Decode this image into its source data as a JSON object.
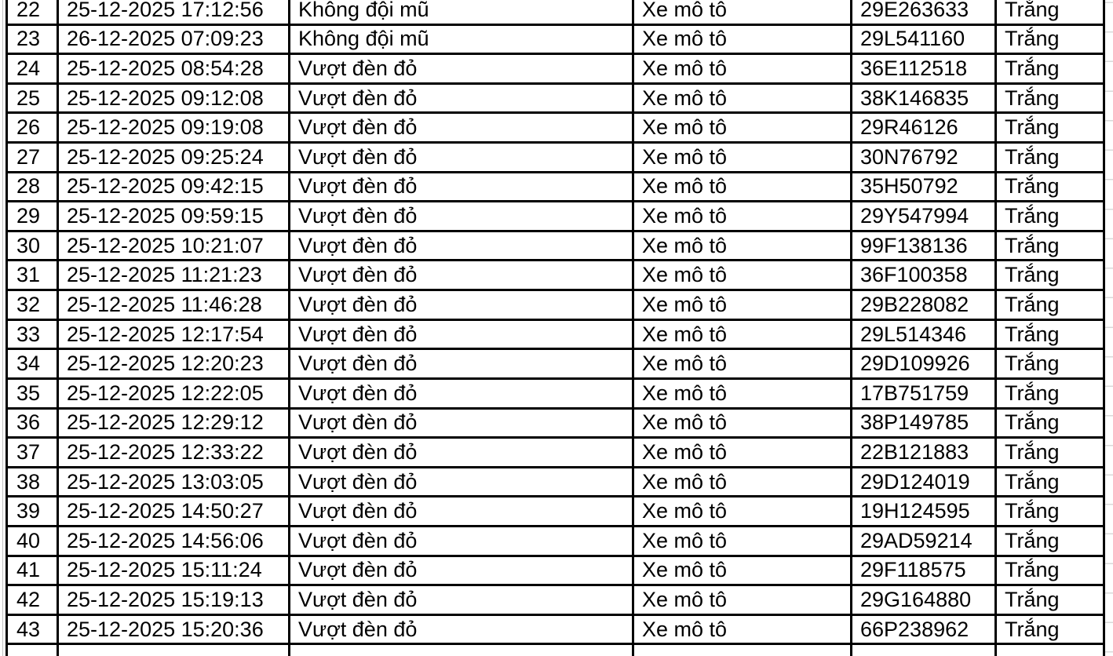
{
  "app": {
    "description": "Spreadsheet region showing a Vietnamese traffic-violation list (rows 22-43), no header row visible"
  },
  "colors": {
    "background": "#ffffff",
    "text": "#000000",
    "table_border": "#000000",
    "sheet_gridline_right": "#d9d9d9",
    "sheet_gridline_left": "#c2c2c2"
  },
  "table": {
    "columns": [
      {
        "key": "no",
        "name": "cell-row-number"
      },
      {
        "key": "datetime",
        "name": "cell-datetime"
      },
      {
        "key": "violation",
        "name": "cell-violation"
      },
      {
        "key": "vehicle",
        "name": "cell-vehicle-type"
      },
      {
        "key": "plate",
        "name": "cell-license-plate"
      },
      {
        "key": "status",
        "name": "cell-status"
      }
    ],
    "rows": [
      {
        "no": "22",
        "datetime": "25-12-2025 17:12:56",
        "violation": "Không đội mũ",
        "vehicle": "Xe mô tô",
        "plate": "29E263633",
        "status": "Trắng"
      },
      {
        "no": "23",
        "datetime": "26-12-2025 07:09:23",
        "violation": "Không đội mũ",
        "vehicle": "Xe mô tô",
        "plate": "29L541160",
        "status": "Trắng"
      },
      {
        "no": "24",
        "datetime": "25-12-2025 08:54:28",
        "violation": "Vượt đèn đỏ",
        "vehicle": "Xe mô tô",
        "plate": "36E112518",
        "status": "Trắng"
      },
      {
        "no": "25",
        "datetime": "25-12-2025 09:12:08",
        "violation": "Vượt đèn đỏ",
        "vehicle": "Xe mô tô",
        "plate": "38K146835",
        "status": "Trắng"
      },
      {
        "no": "26",
        "datetime": "25-12-2025 09:19:08",
        "violation": "Vượt đèn đỏ",
        "vehicle": "Xe mô tô",
        "plate": "29R46126",
        "status": "Trắng"
      },
      {
        "no": "27",
        "datetime": "25-12-2025 09:25:24",
        "violation": "Vượt đèn đỏ",
        "vehicle": "Xe mô tô",
        "plate": "30N76792",
        "status": "Trắng"
      },
      {
        "no": "28",
        "datetime": "25-12-2025 09:42:15",
        "violation": "Vượt đèn đỏ",
        "vehicle": "Xe mô tô",
        "plate": "35H50792",
        "status": "Trắng"
      },
      {
        "no": "29",
        "datetime": "25-12-2025 09:59:15",
        "violation": "Vượt đèn đỏ",
        "vehicle": "Xe mô tô",
        "plate": "29Y547994",
        "status": "Trắng"
      },
      {
        "no": "30",
        "datetime": "25-12-2025 10:21:07",
        "violation": "Vượt đèn đỏ",
        "vehicle": "Xe mô tô",
        "plate": "99F138136",
        "status": "Trắng"
      },
      {
        "no": "31",
        "datetime": "25-12-2025 11:21:23",
        "violation": "Vượt đèn đỏ",
        "vehicle": "Xe mô tô",
        "plate": "36F100358",
        "status": "Trắng"
      },
      {
        "no": "32",
        "datetime": "25-12-2025 11:46:28",
        "violation": "Vượt đèn đỏ",
        "vehicle": "Xe mô tô",
        "plate": "29B228082",
        "status": "Trắng"
      },
      {
        "no": "33",
        "datetime": "25-12-2025 12:17:54",
        "violation": "Vượt đèn đỏ",
        "vehicle": "Xe mô tô",
        "plate": "29L514346",
        "status": "Trắng"
      },
      {
        "no": "34",
        "datetime": "25-12-2025 12:20:23",
        "violation": "Vượt đèn đỏ",
        "vehicle": "Xe mô tô",
        "plate": "29D109926",
        "status": "Trắng"
      },
      {
        "no": "35",
        "datetime": "25-12-2025 12:22:05",
        "violation": "Vượt đèn đỏ",
        "vehicle": "Xe mô tô",
        "plate": "17B751759",
        "status": "Trắng"
      },
      {
        "no": "36",
        "datetime": "25-12-2025 12:29:12",
        "violation": "Vượt đèn đỏ",
        "vehicle": "Xe mô tô",
        "plate": "38P149785",
        "status": "Trắng"
      },
      {
        "no": "37",
        "datetime": "25-12-2025 12:33:22",
        "violation": "Vượt đèn đỏ",
        "vehicle": "Xe mô tô",
        "plate": "22B121883",
        "status": "Trắng"
      },
      {
        "no": "38",
        "datetime": "25-12-2025 13:03:05",
        "violation": "Vượt đèn đỏ",
        "vehicle": "Xe mô tô",
        "plate": "29D124019",
        "status": "Trắng"
      },
      {
        "no": "39",
        "datetime": "25-12-2025 14:50:27",
        "violation": "Vượt đèn đỏ",
        "vehicle": "Xe mô tô",
        "plate": "19H124595",
        "status": "Trắng"
      },
      {
        "no": "40",
        "datetime": "25-12-2025 14:56:06",
        "violation": "Vượt đèn đỏ",
        "vehicle": "Xe mô tô",
        "plate": "29AD59214",
        "status": "Trắng"
      },
      {
        "no": "41",
        "datetime": "25-12-2025 15:11:24",
        "violation": "Vượt đèn đỏ",
        "vehicle": "Xe mô tô",
        "plate": "29F118575",
        "status": "Trắng"
      },
      {
        "no": "42",
        "datetime": "25-12-2025 15:19:13",
        "violation": "Vượt đèn đỏ",
        "vehicle": "Xe mô tô",
        "plate": "29G164880",
        "status": "Trắng"
      },
      {
        "no": "43",
        "datetime": "25-12-2025 15:20:36",
        "violation": "Vượt đèn đỏ",
        "vehicle": "Xe mô tô",
        "plate": "66P238962",
        "status": "Trắng"
      }
    ]
  }
}
